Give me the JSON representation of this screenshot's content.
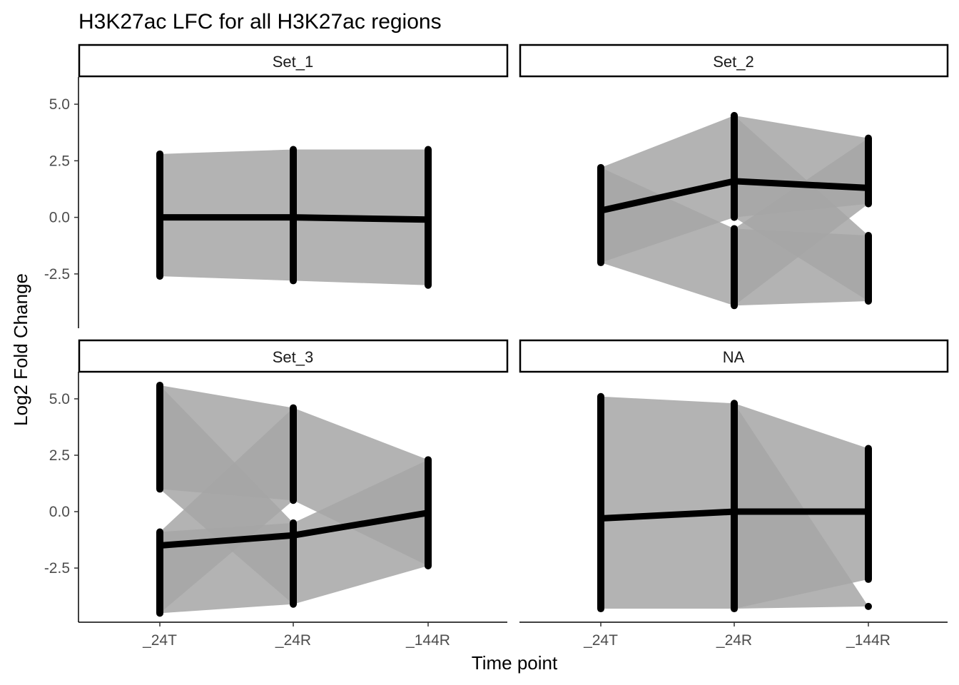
{
  "chart_data": {
    "type": "line",
    "title": "H3K27ac LFC  for all H3K27ac regions",
    "xlabel": "Time point",
    "ylabel": "Log2 Fold Change",
    "x_categories": [
      "_24T",
      "_24R",
      "_144R"
    ],
    "y_ticks": [
      -2.5,
      0.0,
      2.5,
      5.0
    ],
    "y_tick_labels": [
      "-2.5",
      "0.0",
      "2.5",
      "5.0"
    ],
    "ylim": [
      -4.9,
      6.2
    ],
    "grid": false,
    "colors": {
      "points": "#000000",
      "mean_line": "#000000",
      "region_lines": "#a6a6a6"
    },
    "panels": [
      {
        "name": "Set_1",
        "mean": [
          0.0,
          0.0,
          -0.1
        ],
        "point_ranges": [
          [
            [
              -2.6,
              2.8
            ]
          ],
          [
            [
              -2.8,
              3.0
            ]
          ],
          [
            [
              -3.0,
              3.0
            ]
          ]
        ]
      },
      {
        "name": "Set_2",
        "mean": [
          0.3,
          1.6,
          1.3
        ],
        "point_ranges": [
          [
            [
              -2.0,
              2.2
            ]
          ],
          [
            [
              -3.9,
              -0.5
            ],
            [
              0.0,
              4.5
            ]
          ],
          [
            [
              -3.7,
              -0.8
            ],
            [
              0.6,
              3.5
            ]
          ]
        ]
      },
      {
        "name": "Set_3",
        "mean": [
          -1.5,
          -1.05,
          -0.05
        ],
        "point_ranges": [
          [
            [
              -4.5,
              -0.9
            ],
            [
              1.0,
              5.6
            ]
          ],
          [
            [
              -4.1,
              -0.5
            ],
            [
              0.5,
              4.6
            ]
          ],
          [
            [
              -2.4,
              2.3
            ]
          ]
        ]
      },
      {
        "name": "NA",
        "mean": [
          -0.3,
          0.0,
          0.0
        ],
        "point_ranges": [
          [
            [
              -4.3,
              5.1
            ]
          ],
          [
            [
              -4.3,
              4.8
            ]
          ],
          [
            [
              -4.2,
              -4.2
            ],
            [
              -3.0,
              2.8
            ]
          ]
        ]
      }
    ]
  }
}
